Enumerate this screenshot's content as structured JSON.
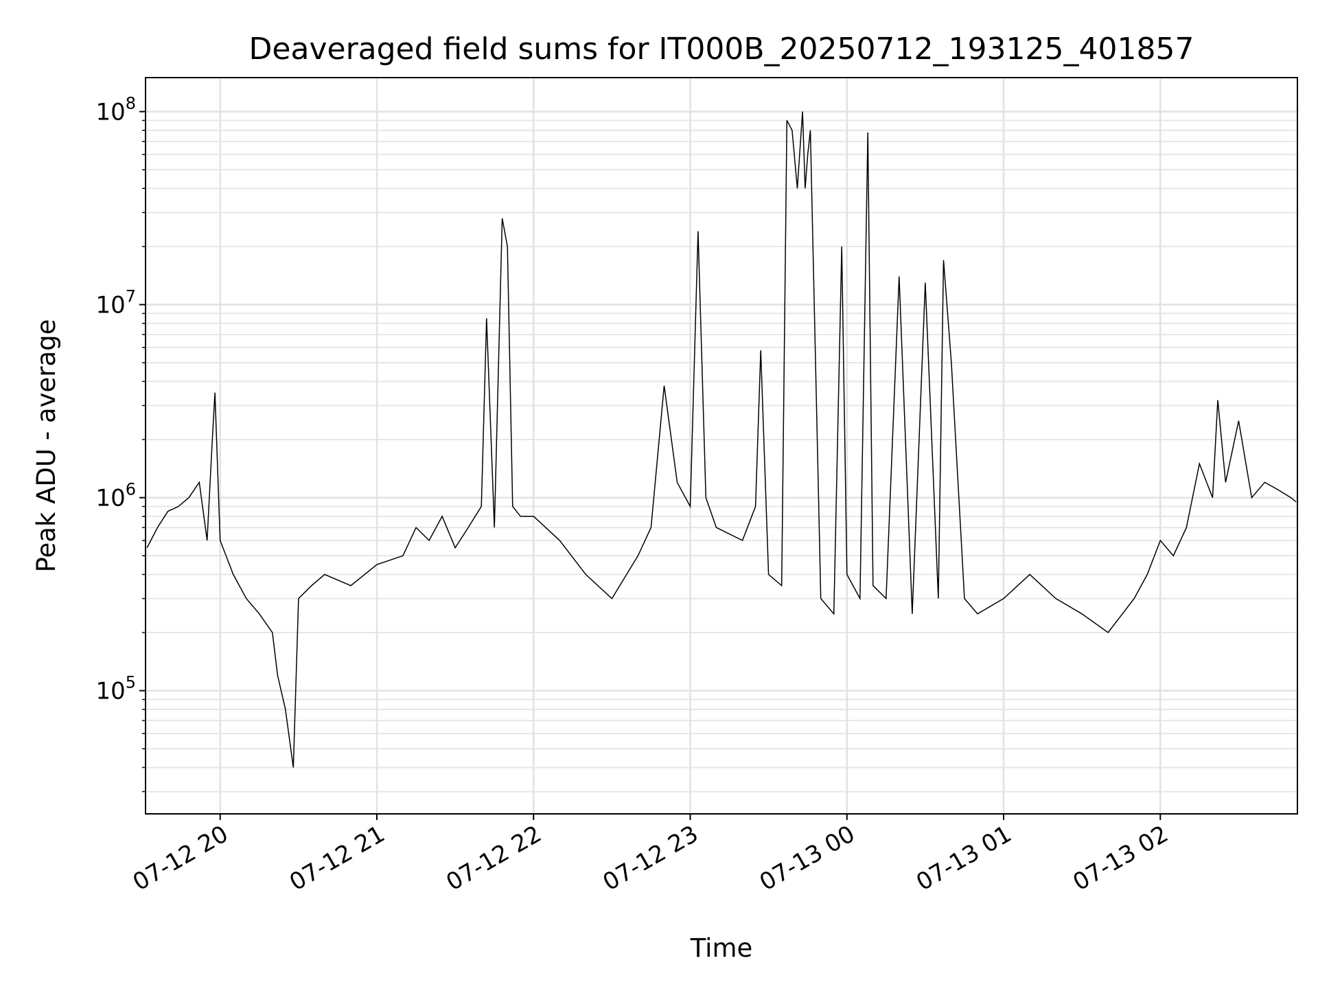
{
  "chart_data": {
    "type": "line",
    "title": "Deaveraged field sums for IT000B_20250712_193125_401857",
    "xlabel": "Time",
    "ylabel": "Peak ADU - average",
    "yscale": "log",
    "ylim": [
      23000,
      150000000
    ],
    "xlim": [
      "2025-07-12 19:31:25",
      "2025-07-13 02:52:30"
    ],
    "grid": true,
    "x_ticks": [
      {
        "label": "07-12 20",
        "time": "2025-07-12 20:00"
      },
      {
        "label": "07-12 21",
        "time": "2025-07-12 21:00"
      },
      {
        "label": "07-12 22",
        "time": "2025-07-12 22:00"
      },
      {
        "label": "07-12 23",
        "time": "2025-07-12 23:00"
      },
      {
        "label": "07-13 00",
        "time": "2025-07-13 00:00"
      },
      {
        "label": "07-13 01",
        "time": "2025-07-13 01:00"
      },
      {
        "label": "07-13 02",
        "time": "2025-07-13 02:00"
      }
    ],
    "y_ticks": [
      {
        "value": 100000,
        "base": "10",
        "exp": "5"
      },
      {
        "value": 1000000,
        "base": "10",
        "exp": "6"
      },
      {
        "value": 10000000,
        "base": "10",
        "exp": "7"
      },
      {
        "value": 100000000,
        "base": "10",
        "exp": "8"
      }
    ],
    "series": [
      {
        "color": "#000000",
        "x": [
          "2025-07-12 19:32",
          "2025-07-12 19:36",
          "2025-07-12 19:40",
          "2025-07-12 19:44",
          "2025-07-12 19:48",
          "2025-07-12 19:52",
          "2025-07-12 19:55",
          "2025-07-12 19:57",
          "2025-07-12 19:58",
          "2025-07-12 20:00",
          "2025-07-12 20:05",
          "2025-07-12 20:10",
          "2025-07-12 20:15",
          "2025-07-12 20:20",
          "2025-07-12 20:22",
          "2025-07-12 20:25",
          "2025-07-12 20:28",
          "2025-07-12 20:30",
          "2025-07-12 20:35",
          "2025-07-12 20:40",
          "2025-07-12 20:50",
          "2025-07-12 21:00",
          "2025-07-12 21:10",
          "2025-07-12 21:15",
          "2025-07-12 21:20",
          "2025-07-12 21:25",
          "2025-07-12 21:30",
          "2025-07-12 21:35",
          "2025-07-12 21:40",
          "2025-07-12 21:42",
          "2025-07-12 21:45",
          "2025-07-12 21:48",
          "2025-07-12 21:50",
          "2025-07-12 21:52",
          "2025-07-12 21:55",
          "2025-07-12 22:00",
          "2025-07-12 22:10",
          "2025-07-12 22:20",
          "2025-07-12 22:30",
          "2025-07-12 22:40",
          "2025-07-12 22:45",
          "2025-07-12 22:50",
          "2025-07-12 22:55",
          "2025-07-12 23:00",
          "2025-07-12 23:03",
          "2025-07-12 23:06",
          "2025-07-12 23:10",
          "2025-07-12 23:20",
          "2025-07-12 23:25",
          "2025-07-12 23:27",
          "2025-07-12 23:30",
          "2025-07-12 23:35",
          "2025-07-12 23:37",
          "2025-07-12 23:39",
          "2025-07-12 23:41",
          "2025-07-12 23:43",
          "2025-07-12 23:44",
          "2025-07-12 23:45",
          "2025-07-12 23:46",
          "2025-07-12 23:50",
          "2025-07-12 23:55",
          "2025-07-12 23:58",
          "2025-07-13 00:00",
          "2025-07-13 00:05",
          "2025-07-13 00:08",
          "2025-07-13 00:10",
          "2025-07-13 00:15",
          "2025-07-13 00:20",
          "2025-07-13 00:25",
          "2025-07-13 00:30",
          "2025-07-13 00:35",
          "2025-07-13 00:37",
          "2025-07-13 00:40",
          "2025-07-13 00:45",
          "2025-07-13 00:50",
          "2025-07-13 01:00",
          "2025-07-13 01:10",
          "2025-07-13 01:20",
          "2025-07-13 01:30",
          "2025-07-13 01:40",
          "2025-07-13 01:50",
          "2025-07-13 01:55",
          "2025-07-13 02:00",
          "2025-07-13 02:05",
          "2025-07-13 02:10",
          "2025-07-13 02:15",
          "2025-07-13 02:20",
          "2025-07-13 02:22",
          "2025-07-13 02:25",
          "2025-07-13 02:30",
          "2025-07-13 02:35",
          "2025-07-13 02:40",
          "2025-07-13 02:45",
          "2025-07-13 02:50",
          "2025-07-13 02:52"
        ],
        "y": [
          550000,
          700000,
          850000,
          900000,
          1000000,
          1200000,
          600000,
          2000000,
          3500000,
          600000,
          400000,
          300000,
          250000,
          200000,
          120000,
          80000,
          40000,
          300000,
          350000,
          400000,
          350000,
          450000,
          500000,
          700000,
          600000,
          800000,
          550000,
          700000,
          900000,
          8500000,
          700000,
          28000000,
          20000000,
          900000,
          800000,
          800000,
          600000,
          400000,
          300000,
          500000,
          700000,
          3800000,
          1200000,
          900000,
          24000000,
          1000000,
          700000,
          600000,
          900000,
          5800000,
          400000,
          350000,
          90000000,
          80000000,
          40000000,
          100000000,
          40000000,
          60000000,
          80000000,
          300000,
          250000,
          20000000,
          400000,
          300000,
          78000000,
          350000,
          300000,
          14000000,
          250000,
          13000000,
          300000,
          17000000,
          5000000,
          300000,
          250000,
          300000,
          400000,
          300000,
          250000,
          200000,
          300000,
          400000,
          600000,
          500000,
          700000,
          1500000,
          1000000,
          3200000,
          1200000,
          2500000,
          1000000,
          1200000,
          1100000,
          1000000,
          950000
        ]
      }
    ]
  }
}
